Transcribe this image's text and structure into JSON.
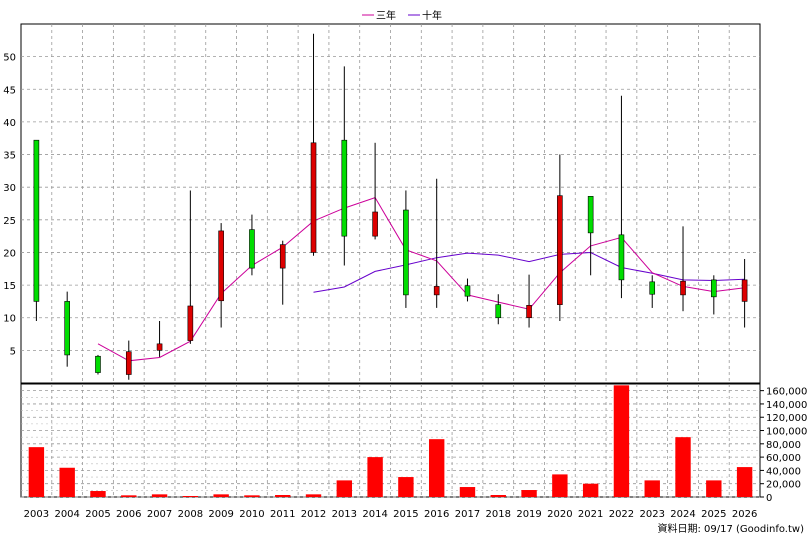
{
  "chart_data": {
    "type": "candlestick_with_volume",
    "legend": [
      {
        "label": "三年",
        "color": "#cc0099"
      },
      {
        "label": "十年",
        "color": "#6600cc"
      }
    ],
    "years": [
      "2003",
      "2004",
      "2005",
      "2006",
      "2007",
      "2008",
      "2009",
      "2010",
      "2011",
      "2012",
      "2013",
      "2014",
      "2015",
      "2016",
      "2017",
      "2018",
      "2019",
      "2020",
      "2021",
      "2022",
      "2023",
      "2024",
      "2025",
      "2026"
    ],
    "price_axis": {
      "ylim": [
        0,
        55
      ],
      "ticks": [
        5,
        10,
        15,
        20,
        25,
        30,
        35,
        40,
        45,
        50
      ]
    },
    "candles": [
      {
        "open": 12.5,
        "close": 37.2,
        "high": 37.2,
        "low": 9.5
      },
      {
        "open": 4.3,
        "close": 12.5,
        "high": 14.0,
        "low": 2.5
      },
      {
        "open": 1.6,
        "close": 4.1,
        "high": 4.3,
        "low": 1.3
      },
      {
        "open": 4.8,
        "close": 1.3,
        "high": 6.5,
        "low": 0.5
      },
      {
        "open": 6.0,
        "close": 5.0,
        "high": 9.5,
        "low": 4.0
      },
      {
        "open": 11.8,
        "close": 6.5,
        "high": 29.5,
        "low": 6.0
      },
      {
        "open": 23.3,
        "close": 12.6,
        "high": 24.5,
        "low": 8.5
      },
      {
        "open": 17.6,
        "close": 23.5,
        "high": 25.8,
        "low": 16.5
      },
      {
        "open": 21.2,
        "close": 17.6,
        "high": 21.8,
        "low": 12.0
      },
      {
        "open": 36.8,
        "close": 20.0,
        "high": 53.5,
        "low": 19.5
      },
      {
        "open": 22.5,
        "close": 37.2,
        "high": 48.5,
        "low": 18.0
      },
      {
        "open": 26.2,
        "close": 22.5,
        "high": 36.8,
        "low": 22.0
      },
      {
        "open": 13.5,
        "close": 26.5,
        "high": 29.5,
        "low": 11.5
      },
      {
        "open": 14.8,
        "close": 13.5,
        "high": 31.3,
        "low": 11.5
      },
      {
        "open": 13.3,
        "close": 14.9,
        "high": 16.0,
        "low": 12.5
      },
      {
        "open": 10.0,
        "close": 12.0,
        "high": 13.6,
        "low": 9.0
      },
      {
        "open": 11.9,
        "close": 10.0,
        "high": 16.6,
        "low": 8.5
      },
      {
        "open": 28.7,
        "close": 12.0,
        "high": 35.0,
        "low": 9.5
      },
      {
        "open": 23.0,
        "close": 28.6,
        "high": 28.6,
        "low": 16.5
      },
      {
        "open": 15.8,
        "close": 22.7,
        "high": 44.0,
        "low": 13.0
      },
      {
        "open": 13.6,
        "close": 15.5,
        "high": 16.5,
        "low": 11.5
      },
      {
        "open": 15.6,
        "close": 13.5,
        "high": 24.0,
        "low": 11.0
      },
      {
        "open": 13.2,
        "close": 15.8,
        "high": 16.5,
        "low": 10.5
      },
      {
        "open": 15.8,
        "close": 12.5,
        "high": 19.0,
        "low": 8.5
      }
    ],
    "ma_3yr": [
      null,
      null,
      6.0,
      3.4,
      3.9,
      6.4,
      13.7,
      18.0,
      20.8,
      24.8,
      26.8,
      28.4,
      20.4,
      18.7,
      13.5,
      12.4,
      11.3,
      16.9,
      21.0,
      22.3,
      16.9,
      14.8,
      14.0,
      14.6
    ],
    "ma_10yr": [
      null,
      null,
      null,
      null,
      null,
      null,
      null,
      null,
      null,
      13.9,
      14.7,
      17.1,
      18.1,
      19.2,
      19.9,
      19.6,
      18.6,
      19.7,
      20.0,
      17.7,
      16.8,
      15.8,
      15.7,
      15.9
    ],
    "volume_axis": {
      "ylim": [
        0,
        170000
      ],
      "ticks": [
        0,
        20000,
        40000,
        60000,
        80000,
        100000,
        120000,
        140000,
        160000
      ],
      "tick_labels": [
        "0",
        "20,000",
        "40,000",
        "60,000",
        "80,000",
        "100,000",
        "120,000",
        "140,000",
        "160,000"
      ]
    },
    "volume": [
      75000,
      44000,
      9000,
      2500,
      4000,
      1500,
      4000,
      2500,
      3000,
      4000,
      25000,
      60000,
      30000,
      87000,
      15000,
      3000,
      10500,
      34000,
      20000,
      168000,
      25000,
      90000,
      25000,
      45000
    ]
  },
  "footer": "資料日期: 09/17 (Goodinfo.tw)",
  "colors": {
    "up": "#00dd00",
    "down": "#dd0000",
    "volume": "#ff0000",
    "grid": "#999999",
    "ma3": "#cc0099",
    "ma10": "#6600cc"
  }
}
